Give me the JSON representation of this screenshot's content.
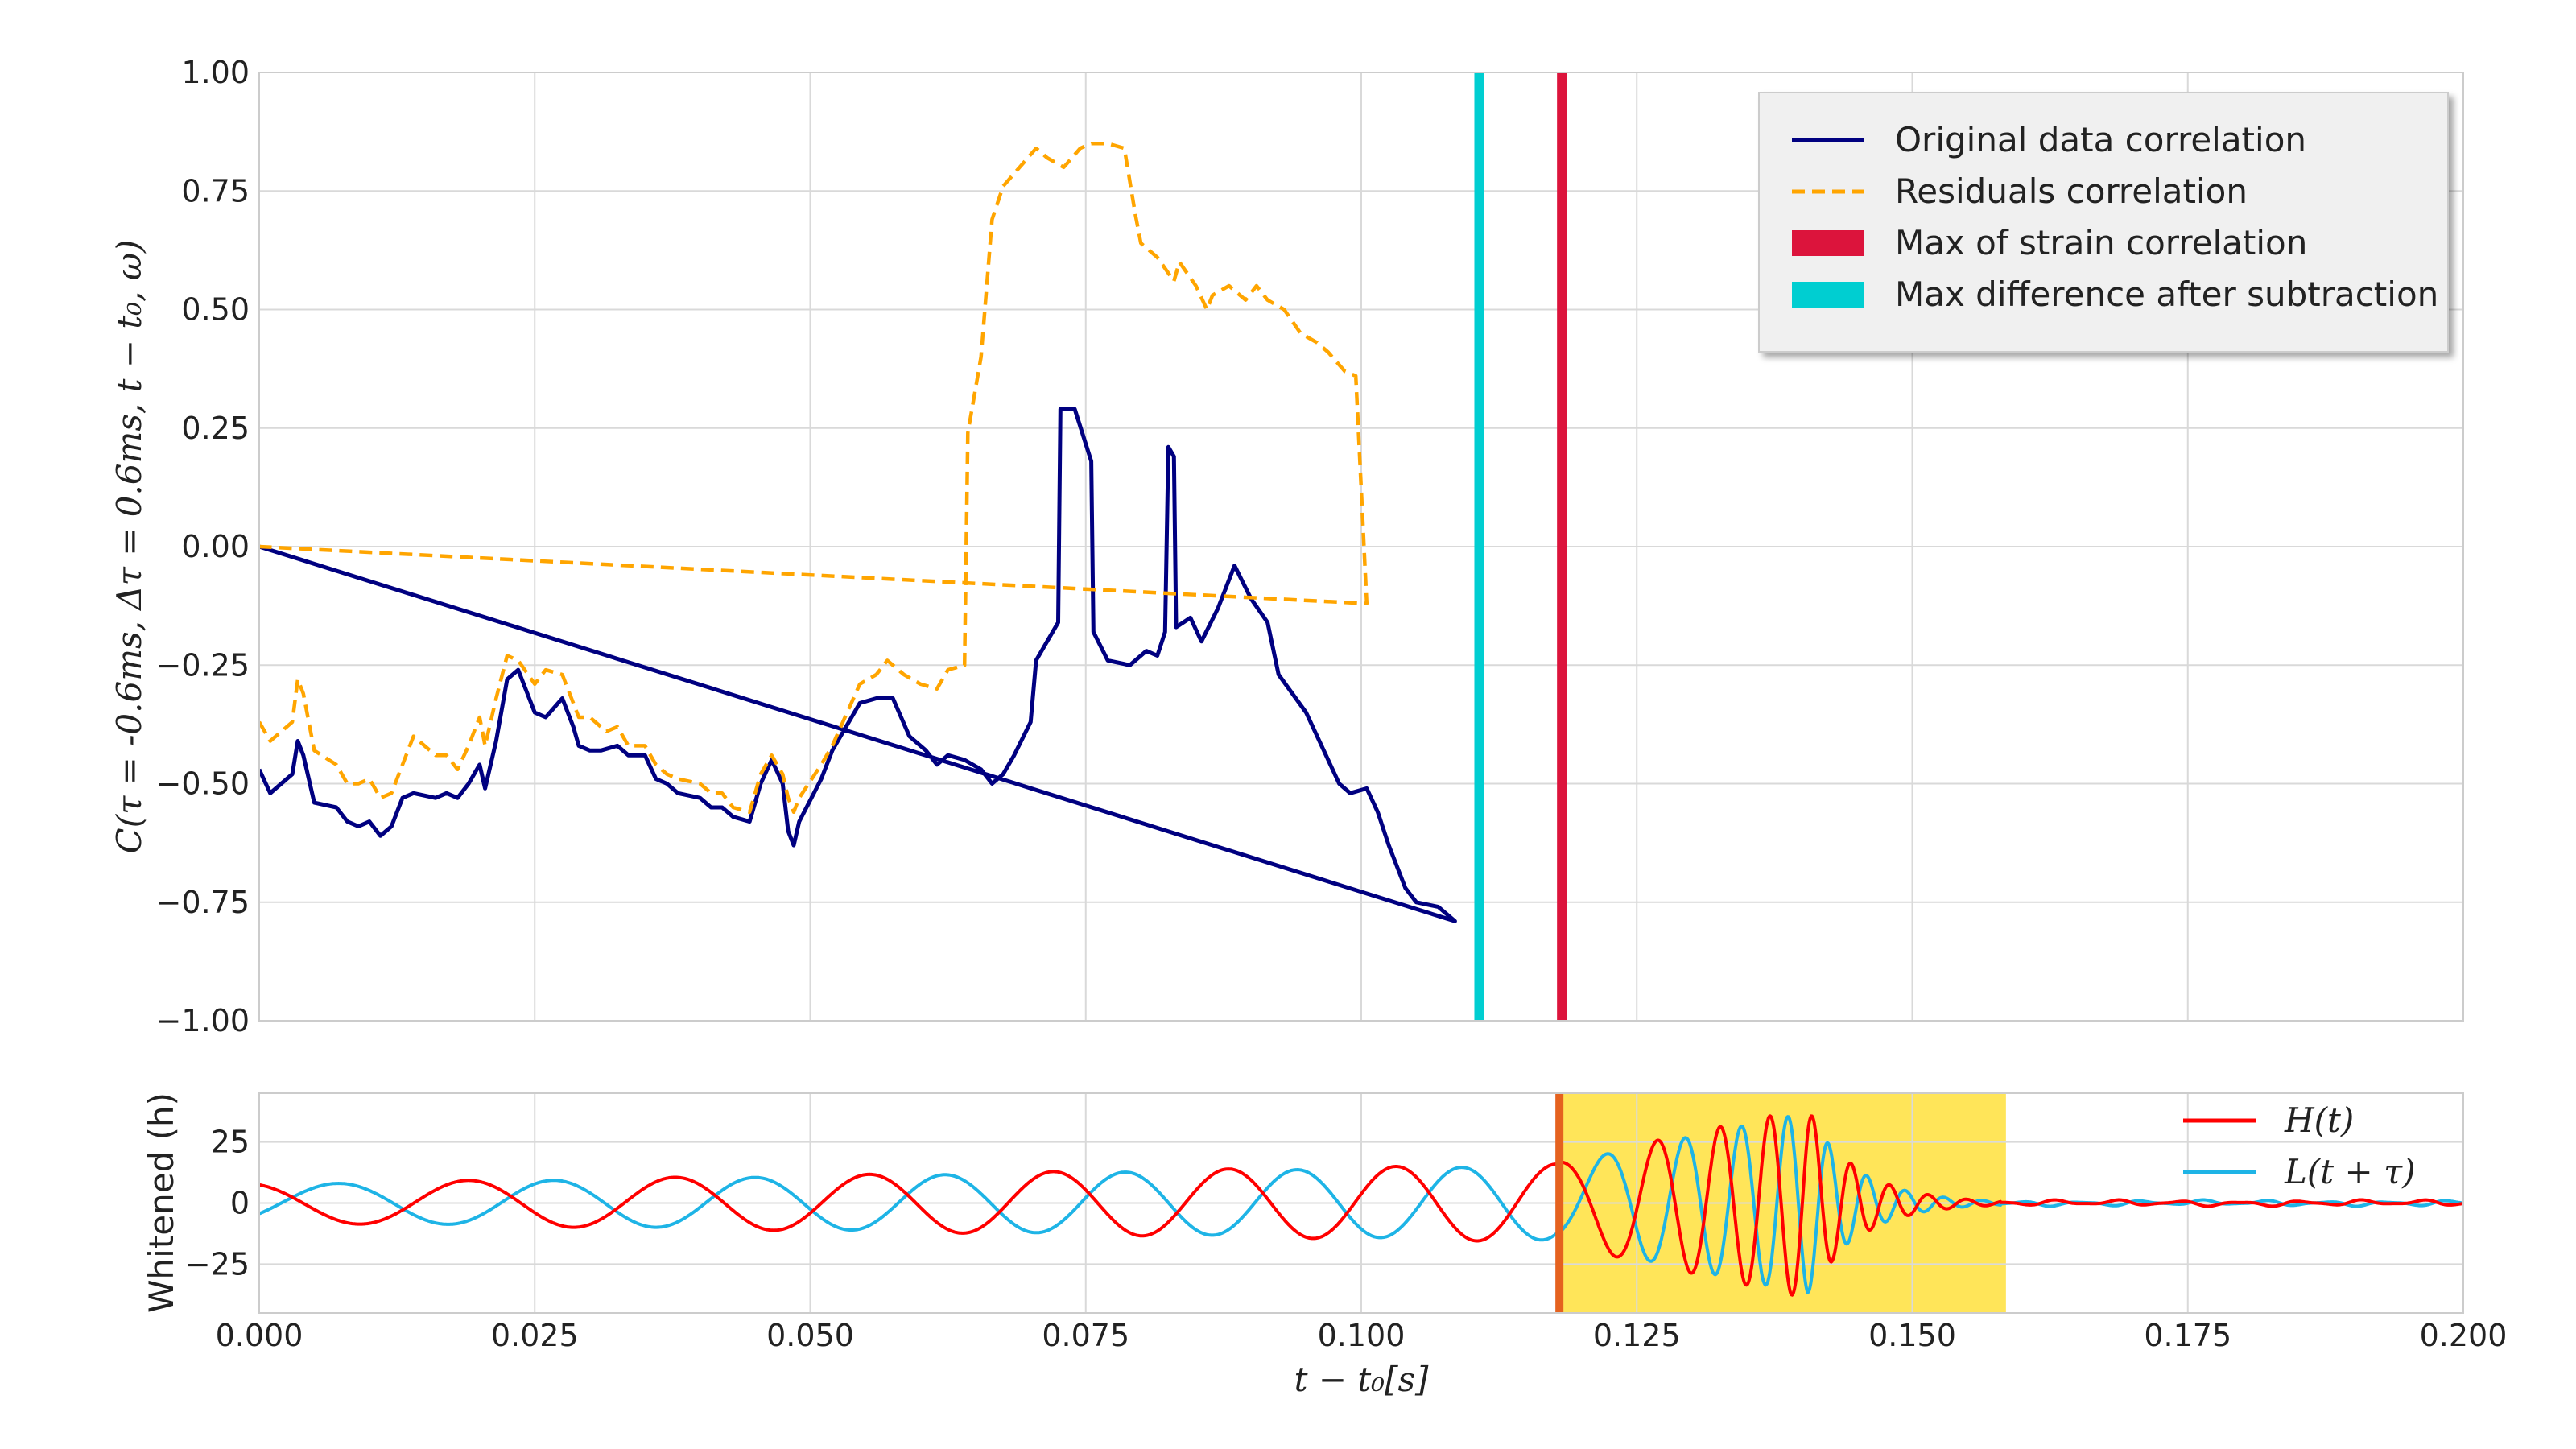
{
  "chart_data": [
    {
      "type": "line",
      "ylabel": "C(τ = -0.6ms, Δτ = 0.6ms, t − t₀, ω)",
      "xlabel": "",
      "xlim": [
        0.0,
        0.2
      ],
      "ylim": [
        -1.0,
        1.0
      ],
      "yticks": [
        1.0,
        0.75,
        0.5,
        0.25,
        0.0,
        -0.25,
        -0.5,
        -0.75,
        -1.0
      ],
      "ytick_labels": [
        "1.00",
        "0.75",
        "0.50",
        "0.25",
        "0.00",
        "−0.25",
        "−0.50",
        "−0.75",
        "−1.00"
      ],
      "grid": true,
      "legend_position": "top-right",
      "series": [
        {
          "name": "Original data correlation",
          "style": "solid",
          "color": "#000080",
          "points": [
            [
              0.0,
              -0.47
            ],
            [
              0.001,
              -0.52
            ],
            [
              0.003,
              -0.48
            ],
            [
              0.0035,
              -0.41
            ],
            [
              0.004,
              -0.44
            ],
            [
              0.005,
              -0.54
            ],
            [
              0.007,
              -0.55
            ],
            [
              0.008,
              -0.58
            ],
            [
              0.009,
              -0.59
            ],
            [
              0.01,
              -0.58
            ],
            [
              0.011,
              -0.61
            ],
            [
              0.012,
              -0.59
            ],
            [
              0.013,
              -0.53
            ],
            [
              0.014,
              -0.52
            ],
            [
              0.016,
              -0.53
            ],
            [
              0.017,
              -0.52
            ],
            [
              0.018,
              -0.53
            ],
            [
              0.019,
              -0.5
            ],
            [
              0.02,
              -0.46
            ],
            [
              0.0205,
              -0.51
            ],
            [
              0.0215,
              -0.41
            ],
            [
              0.0225,
              -0.28
            ],
            [
              0.0235,
              -0.26
            ],
            [
              0.025,
              -0.35
            ],
            [
              0.026,
              -0.36
            ],
            [
              0.0275,
              -0.32
            ],
            [
              0.0285,
              -0.38
            ],
            [
              0.029,
              -0.42
            ],
            [
              0.03,
              -0.43
            ],
            [
              0.031,
              -0.43
            ],
            [
              0.0325,
              -0.42
            ],
            [
              0.0335,
              -0.44
            ],
            [
              0.035,
              -0.44
            ],
            [
              0.036,
              -0.49
            ],
            [
              0.037,
              -0.5
            ],
            [
              0.038,
              -0.52
            ],
            [
              0.04,
              -0.53
            ],
            [
              0.041,
              -0.55
            ],
            [
              0.042,
              -0.55
            ],
            [
              0.043,
              -0.57
            ],
            [
              0.0445,
              -0.58
            ],
            [
              0.0455,
              -0.5
            ],
            [
              0.0465,
              -0.45
            ],
            [
              0.0475,
              -0.5
            ],
            [
              0.048,
              -0.6
            ],
            [
              0.0485,
              -0.63
            ],
            [
              0.049,
              -0.58
            ],
            [
              0.051,
              -0.49
            ],
            [
              0.052,
              -0.43
            ],
            [
              0.0545,
              -0.33
            ],
            [
              0.056,
              -0.32
            ],
            [
              0.0575,
              -0.32
            ],
            [
              0.059,
              -0.4
            ],
            [
              0.0605,
              -0.43
            ],
            [
              0.0615,
              -0.46
            ],
            [
              0.0625,
              -0.44
            ],
            [
              0.064,
              -0.45
            ],
            [
              0.0655,
              -0.47
            ],
            [
              0.0665,
              -0.5
            ],
            [
              0.0675,
              -0.48
            ],
            [
              0.0685,
              -0.44
            ],
            [
              0.07,
              -0.37
            ],
            [
              0.0705,
              -0.24
            ],
            [
              0.0715,
              -0.2
            ],
            [
              0.0725,
              -0.16
            ],
            [
              0.0727,
              0.29
            ],
            [
              0.074,
              0.29
            ],
            [
              0.0755,
              0.18
            ],
            [
              0.0757,
              -0.18
            ],
            [
              0.077,
              -0.24
            ],
            [
              0.079,
              -0.25
            ],
            [
              0.0805,
              -0.22
            ],
            [
              0.0815,
              -0.23
            ],
            [
              0.0822,
              -0.18
            ],
            [
              0.0825,
              0.21
            ],
            [
              0.083,
              0.19
            ],
            [
              0.0832,
              -0.17
            ],
            [
              0.0845,
              -0.15
            ],
            [
              0.0855,
              -0.2
            ],
            [
              0.087,
              -0.13
            ],
            [
              0.0885,
              -0.04
            ],
            [
              0.09,
              -0.11
            ],
            [
              0.0915,
              -0.16
            ],
            [
              0.0925,
              -0.27
            ],
            [
              0.095,
              -0.35
            ],
            [
              0.097,
              -0.45
            ],
            [
              0.098,
              -0.5
            ],
            [
              0.099,
              -0.52
            ],
            [
              0.1005,
              -0.51
            ],
            [
              0.1015,
              -0.56
            ],
            [
              0.1025,
              -0.63
            ],
            [
              0.104,
              -0.72
            ],
            [
              0.105,
              -0.75
            ],
            [
              0.107,
              -0.76
            ],
            [
              0.108,
              -0.78
            ],
            [
              0.1085,
              -0.79
            ],
            [
              0.0,
              0.0
            ]
          ]
        },
        {
          "name": "Residuals correlation",
          "style": "dashed",
          "color": "#FFA500",
          "points": [
            [
              0.0,
              -0.37
            ],
            [
              0.001,
              -0.41
            ],
            [
              0.003,
              -0.37
            ],
            [
              0.0035,
              -0.28
            ],
            [
              0.004,
              -0.31
            ],
            [
              0.005,
              -0.43
            ],
            [
              0.007,
              -0.46
            ],
            [
              0.008,
              -0.5
            ],
            [
              0.009,
              -0.5
            ],
            [
              0.01,
              -0.49
            ],
            [
              0.011,
              -0.53
            ],
            [
              0.012,
              -0.52
            ],
            [
              0.0135,
              -0.43
            ],
            [
              0.014,
              -0.4
            ],
            [
              0.016,
              -0.44
            ],
            [
              0.017,
              -0.44
            ],
            [
              0.018,
              -0.47
            ],
            [
              0.019,
              -0.42
            ],
            [
              0.02,
              -0.36
            ],
            [
              0.0205,
              -0.42
            ],
            [
              0.0215,
              -0.32
            ],
            [
              0.0225,
              -0.23
            ],
            [
              0.0235,
              -0.24
            ],
            [
              0.025,
              -0.29
            ],
            [
              0.026,
              -0.26
            ],
            [
              0.0275,
              -0.27
            ],
            [
              0.0285,
              -0.33
            ],
            [
              0.029,
              -0.36
            ],
            [
              0.03,
              -0.36
            ],
            [
              0.0315,
              -0.39
            ],
            [
              0.0325,
              -0.38
            ],
            [
              0.0335,
              -0.42
            ],
            [
              0.035,
              -0.42
            ],
            [
              0.036,
              -0.46
            ],
            [
              0.037,
              -0.48
            ],
            [
              0.038,
              -0.49
            ],
            [
              0.04,
              -0.5
            ],
            [
              0.041,
              -0.52
            ],
            [
              0.042,
              -0.52
            ],
            [
              0.043,
              -0.55
            ],
            [
              0.0445,
              -0.56
            ],
            [
              0.0455,
              -0.48
            ],
            [
              0.0465,
              -0.44
            ],
            [
              0.0475,
              -0.48
            ],
            [
              0.048,
              -0.53
            ],
            [
              0.0485,
              -0.56
            ],
            [
              0.049,
              -0.53
            ],
            [
              0.051,
              -0.46
            ],
            [
              0.052,
              -0.42
            ],
            [
              0.0545,
              -0.29
            ],
            [
              0.056,
              -0.27
            ],
            [
              0.057,
              -0.24
            ],
            [
              0.0585,
              -0.27
            ],
            [
              0.06,
              -0.29
            ],
            [
              0.0615,
              -0.3
            ],
            [
              0.0625,
              -0.26
            ],
            [
              0.064,
              -0.25
            ],
            [
              0.0643,
              0.24
            ],
            [
              0.0655,
              0.4
            ],
            [
              0.0665,
              0.69
            ],
            [
              0.0675,
              0.76
            ],
            [
              0.069,
              0.8
            ],
            [
              0.0705,
              0.84
            ],
            [
              0.0715,
              0.82
            ],
            [
              0.073,
              0.8
            ],
            [
              0.0745,
              0.84
            ],
            [
              0.0755,
              0.85
            ],
            [
              0.077,
              0.85
            ],
            [
              0.0785,
              0.84
            ],
            [
              0.0795,
              0.7
            ],
            [
              0.08,
              0.64
            ],
            [
              0.0815,
              0.61
            ],
            [
              0.083,
              0.56
            ],
            [
              0.0835,
              0.6
            ],
            [
              0.085,
              0.55
            ],
            [
              0.086,
              0.5
            ],
            [
              0.0865,
              0.53
            ],
            [
              0.088,
              0.55
            ],
            [
              0.0895,
              0.52
            ],
            [
              0.0905,
              0.55
            ],
            [
              0.0915,
              0.52
            ],
            [
              0.093,
              0.5
            ],
            [
              0.0945,
              0.45
            ],
            [
              0.096,
              0.43
            ],
            [
              0.097,
              0.41
            ],
            [
              0.0985,
              0.37
            ],
            [
              0.0995,
              0.36
            ],
            [
              0.1005,
              -0.12
            ],
            [
              0.0,
              0.0
            ]
          ]
        }
      ],
      "vlines": [
        {
          "name": "Max of strain correlation",
          "x": 0.1182,
          "color": "#DC143C"
        },
        {
          "name": "Max difference after subtraction",
          "x": 0.1107,
          "color": "#00CED1"
        }
      ]
    },
    {
      "type": "line",
      "xlabel": "t − t₀[s]",
      "ylabel": "Whitened (h)",
      "xlim": [
        0.0,
        0.2
      ],
      "ylim": [
        -45,
        45
      ],
      "xticks": [
        0.0,
        0.025,
        0.05,
        0.075,
        0.1,
        0.125,
        0.15,
        0.175,
        0.2
      ],
      "xtick_labels": [
        "0.000",
        "0.025",
        "0.050",
        "0.075",
        "0.100",
        "0.125",
        "0.150",
        "0.175",
        "0.200"
      ],
      "yticks": [
        25,
        0,
        -25
      ],
      "ytick_labels": [
        "25",
        "0",
        "−25"
      ],
      "grid": true,
      "legend_position": "top-right",
      "highlight_span": {
        "x0": 0.1182,
        "x1": 0.1585,
        "color": "#FFD700"
      },
      "series": [
        {
          "name": "H(t)",
          "color": "#FF0000"
        },
        {
          "name": "L(t + τ)",
          "color": "#1EB4E6"
        }
      ]
    }
  ]
}
